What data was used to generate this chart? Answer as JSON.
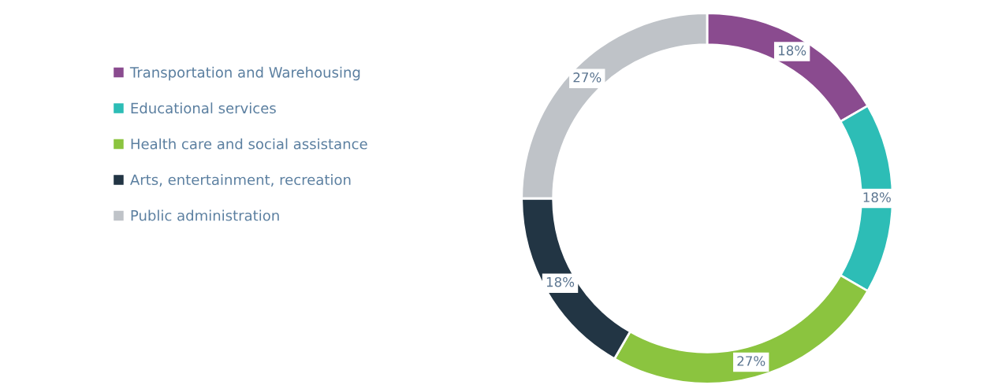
{
  "chart_data": {
    "type": "donut",
    "categories": [
      "Transportation and Warehousing",
      "Educational services",
      "Health care and social assistance",
      "Arts, entertainment, recreation",
      "Public administration"
    ],
    "values": [
      18,
      18,
      27,
      18,
      27
    ],
    "colors": [
      "#8a4b8f",
      "#2dbdb6",
      "#8bc43f",
      "#223544",
      "#bfc3c8"
    ],
    "value_labels": [
      "18%",
      "18%",
      "27%",
      "18%",
      "27%"
    ],
    "legend": "left"
  }
}
